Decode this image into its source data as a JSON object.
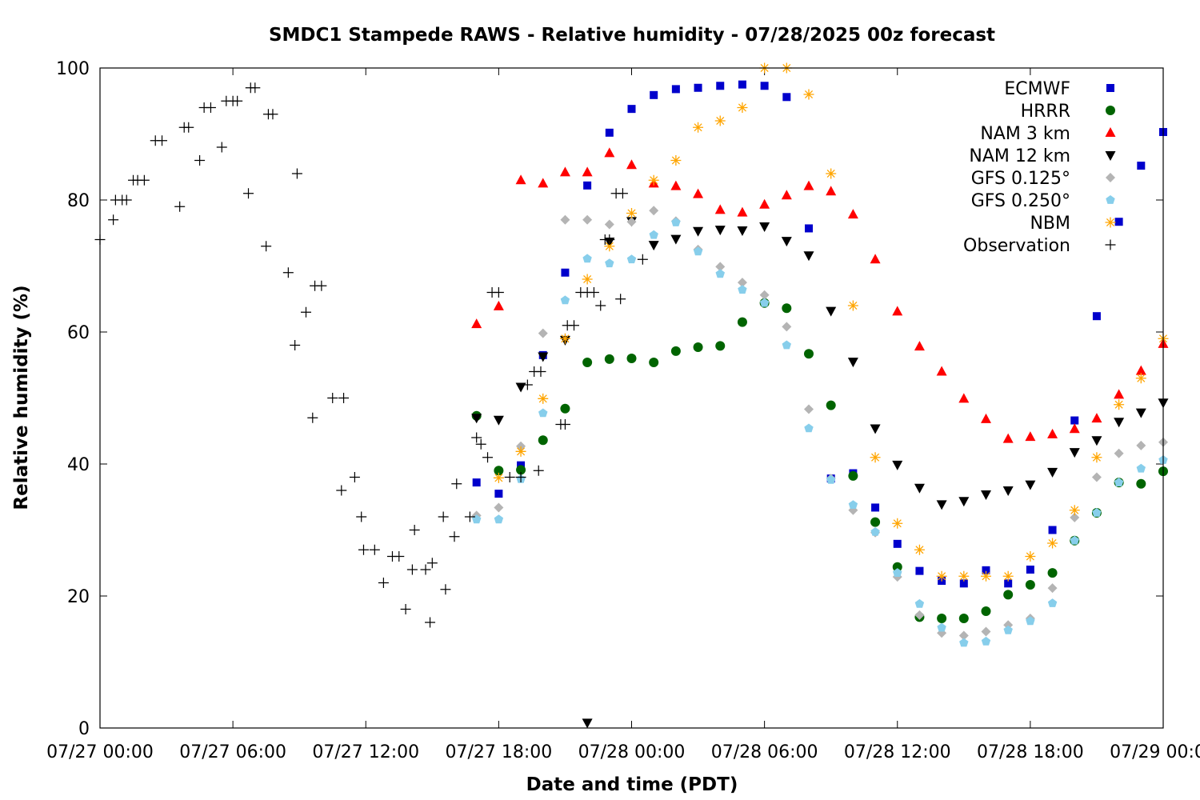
{
  "chart_data": {
    "type": "scatter",
    "title": "SMDC1 Stampede RAWS - Relative humidity - 07/28/2025 00z forecast",
    "xlabel": "Date and time (PDT)",
    "ylabel": "Relative humidity (%)",
    "x_unit": "hours since 07/27 00:00",
    "xlim": [
      0,
      48
    ],
    "ylim": [
      0,
      100
    ],
    "xticks": [
      {
        "value": 0,
        "label": "07/27 00:00"
      },
      {
        "value": 6,
        "label": "07/27 06:00"
      },
      {
        "value": 12,
        "label": "07/27 12:00"
      },
      {
        "value": 18,
        "label": "07/27 18:00"
      },
      {
        "value": 24,
        "label": "07/28 00:00"
      },
      {
        "value": 30,
        "label": "07/28 06:00"
      },
      {
        "value": 36,
        "label": "07/28 12:00"
      },
      {
        "value": 42,
        "label": "07/28 18:00"
      },
      {
        "value": 48,
        "label": "07/29 00:00"
      }
    ],
    "yticks": [
      0,
      20,
      40,
      60,
      80,
      100
    ],
    "grid": false,
    "legend_position": "top-right",
    "series": [
      {
        "name": "ECMWF",
        "marker": "square",
        "color": "#0000cc",
        "points": [
          [
            17,
            37.2
          ],
          [
            18,
            35.5
          ],
          [
            19,
            39.8
          ],
          [
            20,
            56.5
          ],
          [
            21,
            69
          ],
          [
            22,
            82.2
          ],
          [
            23,
            90.2
          ],
          [
            24,
            93.8
          ],
          [
            25,
            95.9
          ],
          [
            26,
            96.8
          ],
          [
            27,
            97
          ],
          [
            28,
            97.3
          ],
          [
            29,
            97.5
          ],
          [
            30,
            97.3
          ],
          [
            31,
            95.6
          ],
          [
            32,
            75.7
          ],
          [
            33,
            37.8
          ],
          [
            34,
            38.6
          ],
          [
            35,
            33.4
          ],
          [
            36,
            27.9
          ],
          [
            37,
            23.8
          ],
          [
            38,
            22.3
          ],
          [
            39,
            21.9
          ],
          [
            40,
            23.9
          ],
          [
            41,
            21.9
          ],
          [
            42,
            24
          ],
          [
            43,
            30
          ],
          [
            44,
            46.6
          ],
          [
            45,
            62.4
          ],
          [
            46,
            76.7
          ],
          [
            47,
            85.2
          ],
          [
            48,
            90.3
          ]
        ]
      },
      {
        "name": "HRRR",
        "marker": "circle",
        "color": "#006400",
        "points": [
          [
            17,
            47.3
          ],
          [
            18,
            39
          ],
          [
            19,
            39.1
          ],
          [
            20,
            43.6
          ],
          [
            21,
            48.4
          ],
          [
            22,
            55.4
          ],
          [
            23,
            55.9
          ],
          [
            24,
            56
          ],
          [
            25,
            55.4
          ],
          [
            26,
            57.1
          ],
          [
            27,
            57.7
          ],
          [
            28,
            57.9
          ],
          [
            29,
            61.5
          ],
          [
            30,
            64.4
          ],
          [
            31,
            63.6
          ],
          [
            32,
            56.7
          ],
          [
            33,
            48.9
          ],
          [
            34,
            38.2
          ],
          [
            35,
            31.2
          ],
          [
            36,
            24.4
          ],
          [
            37,
            16.8
          ],
          [
            38,
            16.6
          ],
          [
            39,
            16.6
          ],
          [
            40,
            17.7
          ],
          [
            41,
            20.2
          ],
          [
            42,
            21.7
          ],
          [
            43,
            23.5
          ],
          [
            44,
            28.4
          ],
          [
            45,
            32.6
          ],
          [
            46,
            37.2
          ],
          [
            47,
            37
          ],
          [
            48,
            38.9
          ]
        ]
      },
      {
        "name": "NAM 3 km",
        "marker": "triangle-up",
        "color": "#ff0000",
        "points": [
          [
            17,
            61.2
          ],
          [
            18,
            63.9
          ],
          [
            19,
            83
          ],
          [
            20,
            82.5
          ],
          [
            21,
            84.2
          ],
          [
            22,
            84.2
          ],
          [
            23,
            87.1
          ],
          [
            24,
            85.3
          ],
          [
            25,
            82.5
          ],
          [
            26,
            82.1
          ],
          [
            27,
            80.9
          ],
          [
            28,
            78.5
          ],
          [
            29,
            78.1
          ],
          [
            30,
            79.3
          ],
          [
            31,
            80.7
          ],
          [
            32,
            82.1
          ],
          [
            33,
            81.3
          ],
          [
            34,
            77.8
          ],
          [
            35,
            71
          ],
          [
            36,
            63.1
          ],
          [
            37,
            57.8
          ],
          [
            38,
            54
          ],
          [
            39,
            49.9
          ],
          [
            40,
            46.8
          ],
          [
            41,
            43.8
          ],
          [
            42,
            44.1
          ],
          [
            43,
            44.5
          ],
          [
            44,
            45.3
          ],
          [
            45,
            46.9
          ],
          [
            46,
            50.5
          ],
          [
            47,
            54.1
          ],
          [
            48,
            58.2
          ]
        ]
      },
      {
        "name": "NAM 12 km",
        "marker": "triangle-down",
        "color": "#000000",
        "points": [
          [
            17,
            47
          ],
          [
            18,
            46.7
          ],
          [
            19,
            51.7
          ],
          [
            20,
            56.3
          ],
          [
            21,
            58.8
          ],
          [
            22,
            0.8
          ],
          [
            23,
            73.7
          ],
          [
            24,
            76.8
          ],
          [
            25,
            73.2
          ],
          [
            26,
            74.1
          ],
          [
            27,
            75.3
          ],
          [
            28,
            75.5
          ],
          [
            29,
            75.4
          ],
          [
            30,
            76
          ],
          [
            31,
            73.8
          ],
          [
            32,
            71.6
          ],
          [
            33,
            63.2
          ],
          [
            34,
            55.5
          ],
          [
            35,
            45.4
          ],
          [
            36,
            39.9
          ],
          [
            37,
            36.4
          ],
          [
            38,
            33.9
          ],
          [
            39,
            34.4
          ],
          [
            40,
            35.4
          ],
          [
            41,
            36
          ],
          [
            42,
            36.9
          ],
          [
            43,
            38.8
          ],
          [
            44,
            41.8
          ],
          [
            45,
            43.6
          ],
          [
            46,
            46.4
          ],
          [
            47,
            47.8
          ],
          [
            48,
            49.3
          ]
        ]
      },
      {
        "name": "GFS 0.125°",
        "marker": "diamond",
        "color": "#b4b4b4",
        "points": [
          [
            17,
            32.2
          ],
          [
            18,
            33.4
          ],
          [
            19,
            42.7
          ],
          [
            20,
            59.8
          ],
          [
            21,
            77
          ],
          [
            22,
            77
          ],
          [
            23,
            76.3
          ],
          [
            24,
            76.7
          ],
          [
            25,
            78.4
          ],
          [
            26,
            76.8
          ],
          [
            27,
            72.5
          ],
          [
            28,
            69.9
          ],
          [
            29,
            67.5
          ],
          [
            30,
            65.6
          ],
          [
            31,
            60.8
          ],
          [
            32,
            48.3
          ],
          [
            33,
            37.8
          ],
          [
            34,
            33
          ],
          [
            35,
            29.6
          ],
          [
            36,
            22.9
          ],
          [
            37,
            17.1
          ],
          [
            38,
            14.4
          ],
          [
            39,
            14
          ],
          [
            40,
            14.6
          ],
          [
            41,
            15.6
          ],
          [
            42,
            16.6
          ],
          [
            43,
            21.2
          ],
          [
            44,
            31.9
          ],
          [
            45,
            38
          ],
          [
            46,
            41.6
          ],
          [
            47,
            42.8
          ],
          [
            48,
            43.3
          ]
        ]
      },
      {
        "name": "GFS 0.250°",
        "marker": "pentagon",
        "color": "#87ceeb",
        "points": [
          [
            17,
            31.6
          ],
          [
            18,
            31.6
          ],
          [
            19,
            37.7
          ],
          [
            20,
            47.7
          ],
          [
            21,
            64.8
          ],
          [
            22,
            71.1
          ],
          [
            23,
            70.4
          ],
          [
            24,
            71
          ],
          [
            25,
            74.7
          ],
          [
            26,
            76.6
          ],
          [
            27,
            72.2
          ],
          [
            28,
            68.8
          ],
          [
            29,
            66.4
          ],
          [
            30,
            64.4
          ],
          [
            31,
            58
          ],
          [
            32,
            45.4
          ],
          [
            33,
            37.6
          ],
          [
            34,
            33.8
          ],
          [
            35,
            29.7
          ],
          [
            36,
            23.5
          ],
          [
            37,
            18.8
          ],
          [
            38,
            15.2
          ],
          [
            39,
            12.9
          ],
          [
            40,
            13.1
          ],
          [
            41,
            14.8
          ],
          [
            42,
            16.2
          ],
          [
            43,
            18.9
          ],
          [
            44,
            28.4
          ],
          [
            45,
            32.6
          ],
          [
            46,
            37.2
          ],
          [
            47,
            39.3
          ],
          [
            48,
            40.6
          ]
        ]
      },
      {
        "name": "NBM",
        "marker": "asterisk",
        "color": "#ffa500",
        "points": [
          [
            18,
            37.9
          ],
          [
            19,
            41.9
          ],
          [
            20,
            49.9
          ],
          [
            21,
            59
          ],
          [
            22,
            68
          ],
          [
            23,
            73
          ],
          [
            24,
            78
          ],
          [
            25,
            83
          ],
          [
            26,
            86
          ],
          [
            27,
            91
          ],
          [
            28,
            92
          ],
          [
            29,
            94
          ],
          [
            30,
            100
          ],
          [
            31,
            100
          ],
          [
            32,
            96
          ],
          [
            33,
            84
          ],
          [
            34,
            64
          ],
          [
            35,
            41
          ],
          [
            36,
            31
          ],
          [
            37,
            27
          ],
          [
            38,
            23
          ],
          [
            39,
            23
          ],
          [
            40,
            23
          ],
          [
            41,
            23
          ],
          [
            42,
            26
          ],
          [
            43,
            28
          ],
          [
            44,
            33
          ],
          [
            45,
            41
          ],
          [
            46,
            49
          ],
          [
            47,
            53
          ],
          [
            48,
            59
          ]
        ]
      },
      {
        "name": "Observation",
        "marker": "plus",
        "color": "#000000",
        "points": [
          [
            0,
            74
          ],
          [
            0.6,
            77
          ],
          [
            0.7,
            80
          ],
          [
            1,
            80
          ],
          [
            1.2,
            80
          ],
          [
            1.5,
            83
          ],
          [
            1.7,
            83
          ],
          [
            2,
            83
          ],
          [
            2.5,
            89
          ],
          [
            2.8,
            89
          ],
          [
            3.6,
            79
          ],
          [
            3.8,
            91
          ],
          [
            4,
            91
          ],
          [
            4.5,
            86
          ],
          [
            4.7,
            94
          ],
          [
            5,
            94
          ],
          [
            5.5,
            88
          ],
          [
            5.7,
            95
          ],
          [
            6,
            95
          ],
          [
            6.2,
            95
          ],
          [
            6.7,
            81
          ],
          [
            6.8,
            97
          ],
          [
            7,
            97
          ],
          [
            7.5,
            73
          ],
          [
            7.6,
            93
          ],
          [
            7.8,
            93
          ],
          [
            8.5,
            69
          ],
          [
            8.8,
            58
          ],
          [
            8.9,
            84
          ],
          [
            9.3,
            63
          ],
          [
            9.6,
            47
          ],
          [
            9.7,
            67
          ],
          [
            10,
            67
          ],
          [
            10.5,
            50
          ],
          [
            10.9,
            36
          ],
          [
            11,
            50
          ],
          [
            11.5,
            38
          ],
          [
            11.8,
            32
          ],
          [
            11.9,
            27
          ],
          [
            12.4,
            27
          ],
          [
            12.8,
            22
          ],
          [
            13.2,
            26
          ],
          [
            13.5,
            26
          ],
          [
            13.8,
            18
          ],
          [
            14.1,
            24
          ],
          [
            14.2,
            30
          ],
          [
            14.7,
            24
          ],
          [
            14.9,
            16
          ],
          [
            15,
            25
          ],
          [
            15.5,
            32
          ],
          [
            15.6,
            21
          ],
          [
            16,
            29
          ],
          [
            16.1,
            37
          ],
          [
            16.7,
            32
          ],
          [
            17,
            44
          ],
          [
            17.2,
            43
          ],
          [
            17.5,
            41
          ],
          [
            17.7,
            66
          ],
          [
            18,
            66
          ],
          [
            18.5,
            38
          ],
          [
            19,
            38
          ],
          [
            19.3,
            52
          ],
          [
            19.6,
            54
          ],
          [
            19.8,
            39
          ],
          [
            19.9,
            54
          ],
          [
            20.8,
            46
          ],
          [
            21,
            46
          ],
          [
            21.1,
            61
          ],
          [
            21.4,
            61
          ],
          [
            21.7,
            66
          ],
          [
            22,
            66
          ],
          [
            22.3,
            66
          ],
          [
            22.6,
            64
          ],
          [
            22.8,
            74
          ],
          [
            23,
            74
          ],
          [
            23.3,
            81
          ],
          [
            23.5,
            65
          ],
          [
            23.6,
            81
          ],
          [
            24.5,
            71
          ]
        ]
      }
    ]
  }
}
